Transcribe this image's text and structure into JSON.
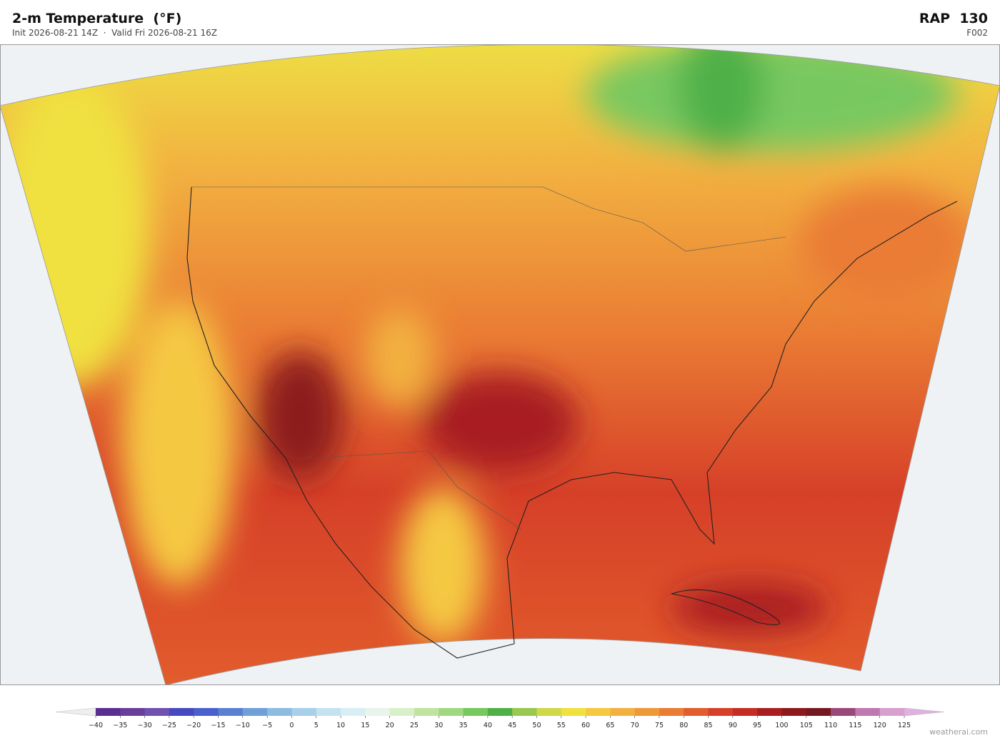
{
  "header": {
    "title": "2-m Temperature  (°F)",
    "subtitle": "Init 2026-08-21 14Z  ·  Valid Fri 2026-08-21 16Z",
    "model": "RAP  130",
    "forecast_hour": "F002"
  },
  "colorbar": {
    "ticks": [
      {
        "value": -40,
        "label": "−40"
      },
      {
        "value": -35,
        "label": "−35"
      },
      {
        "value": -30,
        "label": "−30"
      },
      {
        "value": -25,
        "label": "−25"
      },
      {
        "value": -20,
        "label": "−20"
      },
      {
        "value": -15,
        "label": "−15"
      },
      {
        "value": -10,
        "label": "−10"
      },
      {
        "value": -5,
        "label": "−5"
      },
      0,
      5,
      10,
      15,
      20,
      25,
      30,
      35,
      40,
      45,
      50,
      55,
      60,
      65,
      70,
      75,
      80,
      85,
      90,
      95,
      100,
      105,
      110,
      115,
      120,
      125
    ],
    "colors": [
      "#5a2d91",
      "#6a3d9a",
      "#7050b0",
      "#4848c0",
      "#4a60cc",
      "#5a80d0",
      "#70a0d8",
      "#8cbce0",
      "#a8d0e8",
      "#c4e2f0",
      "#d8eef4",
      "#e8f4ec",
      "#d8f0c8",
      "#c0e4a0",
      "#a0d880",
      "#78c860",
      "#50b048",
      "#98c850",
      "#d0d848",
      "#f0e040",
      "#f5c842",
      "#f2b040",
      "#ee9838",
      "#ea7c34",
      "#e25c2c",
      "#d64028",
      "#c42c24",
      "#a81e20",
      "#8c1a1c",
      "#761820",
      "#9a4878",
      "#c078b0",
      "#d8a0d0"
    ],
    "under_color": "#eeeeee",
    "over_color": "#e0b0e0"
  },
  "footer": {
    "credit": "weatherai.com"
  }
}
